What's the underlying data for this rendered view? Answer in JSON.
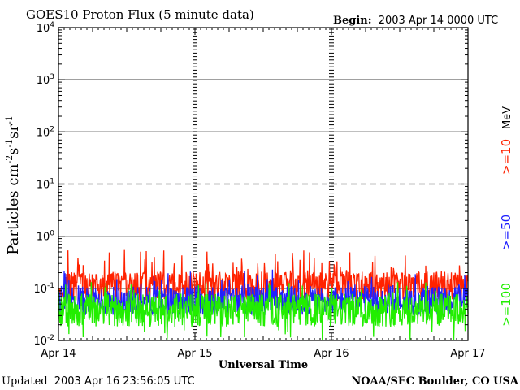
{
  "chart_data": {
    "type": "line",
    "title": "GOES10 Proton Flux (5 minute data)",
    "begin_label": "Begin:",
    "begin_value": "2003 Apr 14 0000 UTC",
    "xlabel": "Universal Time",
    "ylabel": "Particles cm-2s-1sr-1",
    "ylabel_parts": [
      "Particles cm",
      "-2",
      "s",
      "-1",
      "sr",
      "-1"
    ],
    "y_scale": "log",
    "ylim": [
      0.01,
      10000
    ],
    "y_tick_exponents": [
      -2,
      -1,
      0,
      1,
      2,
      3,
      4
    ],
    "y_tick_base": "10",
    "x_range_days": [
      0,
      3
    ],
    "x_ticks": [
      {
        "day": 0,
        "label": "Apr 14"
      },
      {
        "day": 1,
        "label": "Apr 15"
      },
      {
        "day": 2,
        "label": "Apr 16"
      },
      {
        "day": 3,
        "label": "Apr 17"
      }
    ],
    "threshold_lines": [
      {
        "exponent": 3,
        "style": "solid"
      },
      {
        "exponent": 2,
        "style": "solid"
      },
      {
        "exponent": 1,
        "style": "dashed"
      },
      {
        "exponent": 0,
        "style": "solid"
      },
      {
        "exponent": -1,
        "style": "solid"
      }
    ],
    "series": [
      {
        "name": ">=10",
        "color": "#ff2200",
        "baseline": 0.11,
        "spread": 0.28,
        "spike_prob": 0.08,
        "spike_max": 0.55
      },
      {
        "name": ">=50",
        "color": "#2020ff",
        "baseline": 0.058,
        "spread": 0.28,
        "spike_prob": 0.05,
        "spike_max": 0.45
      },
      {
        "name": ">=100",
        "color": "#22ee00",
        "baseline": 0.038,
        "spread": 0.32,
        "spike_prob": 0.04,
        "spike_max": 0.4,
        "dip_prob": 0.02
      }
    ],
    "legend_unit": "MeV",
    "legend_position": "right-vertical"
  },
  "footer": {
    "updated_label": "Updated",
    "updated_value": "2003 Apr 16 23:56:05 UTC",
    "source": "NOAA/SEC Boulder, CO USA"
  }
}
